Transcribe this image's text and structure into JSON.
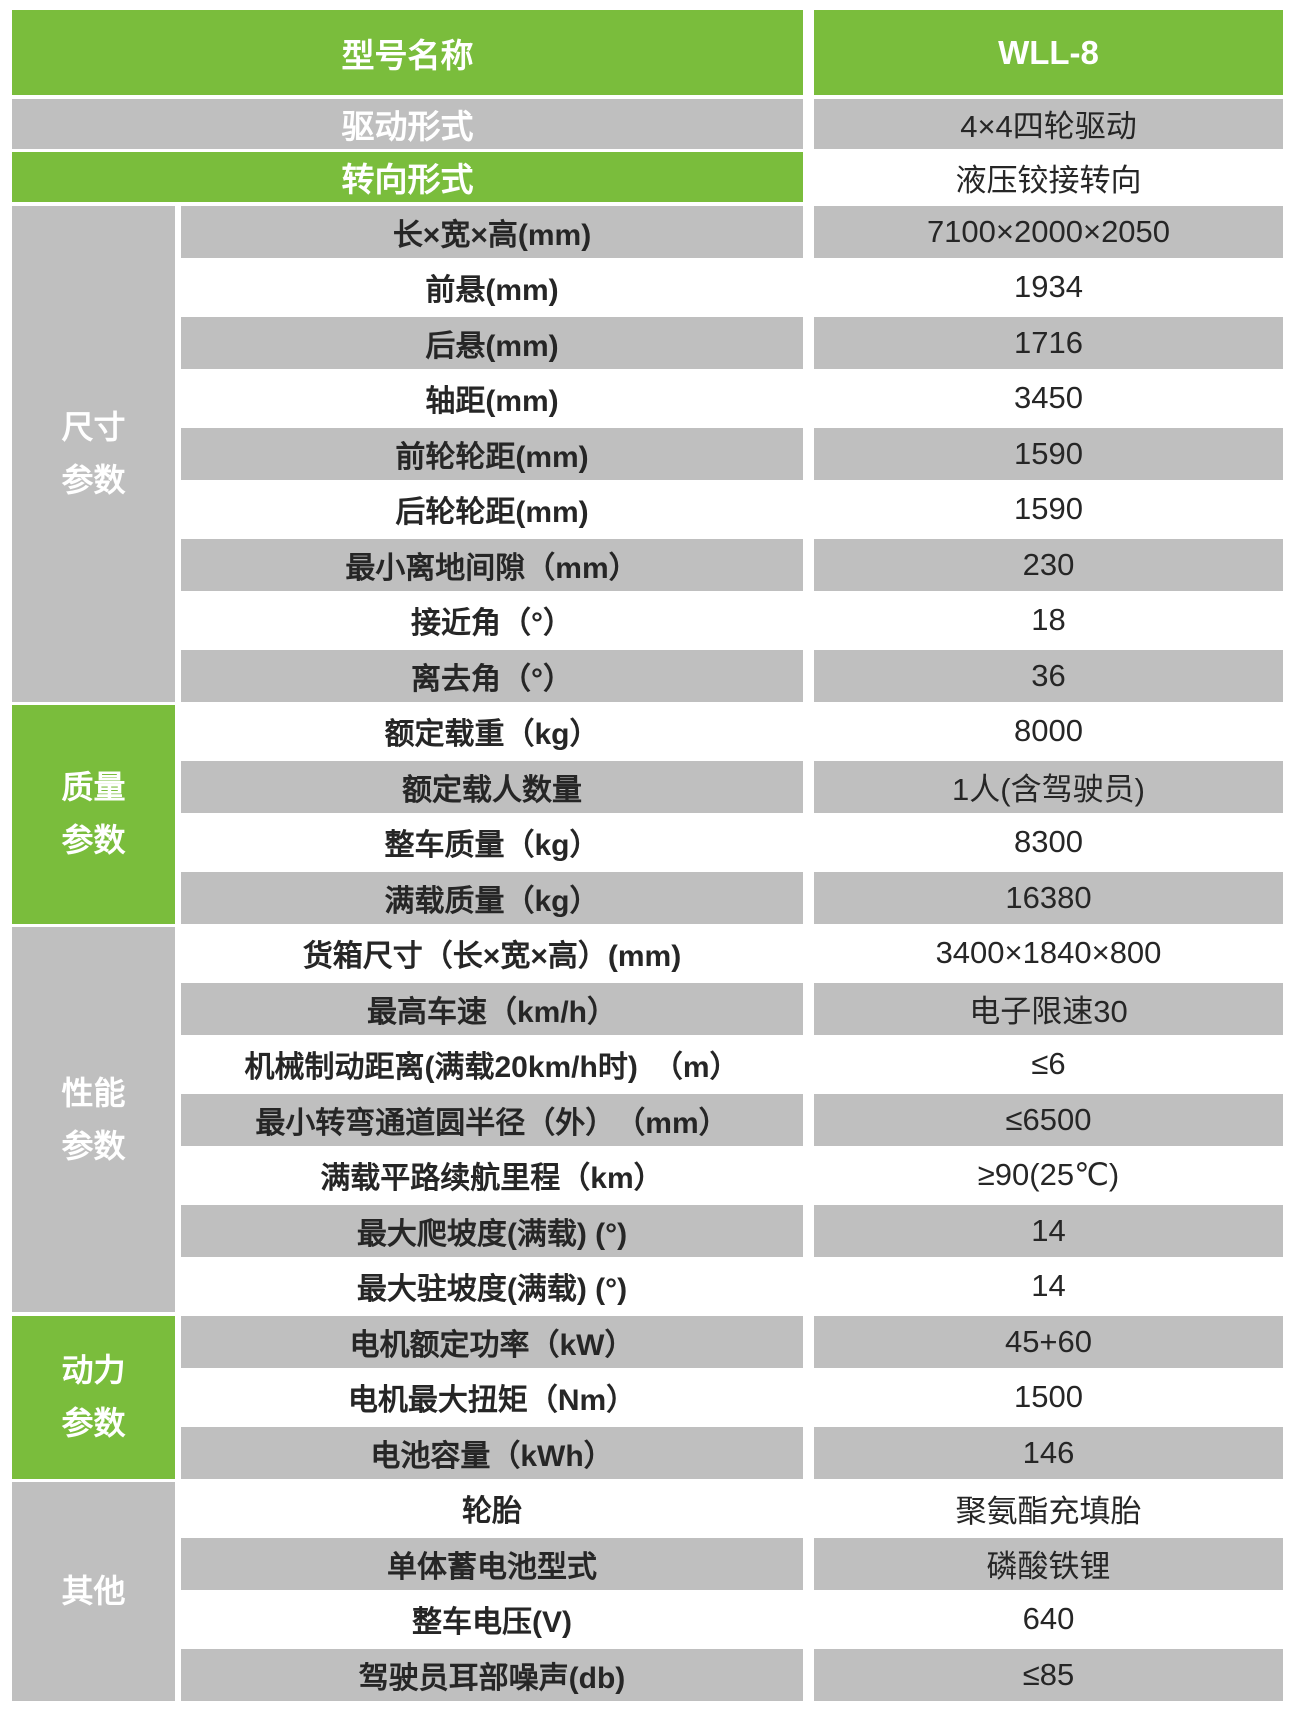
{
  "colors": {
    "green": "#7abd3c",
    "gray": "#bfbfbf",
    "text_dark": "#262626",
    "text_light": "#ffffff"
  },
  "header_rows": [
    {
      "label": "型号名称",
      "value": "WLL-8",
      "label_bg": "green",
      "value_bg": "green",
      "value_style": "light"
    },
    {
      "label": "驱动形式",
      "value": "4×4四轮驱动",
      "label_bg": "gray",
      "value_bg": "gray",
      "value_style": "dark"
    },
    {
      "label": "转向形式",
      "value": "液压铰接转向",
      "label_bg": "green",
      "value_bg": "white",
      "value_style": "dark"
    }
  ],
  "sections": [
    {
      "name": "尺寸参数",
      "side_bg": "gray",
      "rows": [
        {
          "label": "长×宽×高(mm)",
          "value": "7100×2000×2050"
        },
        {
          "label": "前悬(mm)",
          "value": "1934"
        },
        {
          "label": "后悬(mm)",
          "value": "1716"
        },
        {
          "label": "轴距(mm)",
          "value": "3450"
        },
        {
          "label": "前轮轮距(mm)",
          "value": "1590"
        },
        {
          "label": "后轮轮距(mm)",
          "value": "1590"
        },
        {
          "label": "最小离地间隙（mm）",
          "value": "230"
        },
        {
          "label": "接近角（°）",
          "value": "18"
        },
        {
          "label": "离去角（°）",
          "value": "36"
        }
      ]
    },
    {
      "name": "质量参数",
      "side_bg": "green",
      "rows": [
        {
          "label": "额定载重（kg）",
          "value": "8000"
        },
        {
          "label": "额定载人数量",
          "value": "1人(含驾驶员)"
        },
        {
          "label": "整车质量（kg）",
          "value": "8300"
        },
        {
          "label": "满载质量（kg）",
          "value": "16380"
        }
      ]
    },
    {
      "name": "性能参数",
      "side_bg": "gray",
      "rows": [
        {
          "label": "货箱尺寸（长×宽×高）(mm)",
          "value": "3400×1840×800"
        },
        {
          "label": "最高车速（km/h）",
          "value": "电子限速30"
        },
        {
          "label": "机械制动距离(满载20km/h时)　（m）",
          "value": "≤6"
        },
        {
          "label": "最小转弯通道圆半径（外）　（mm）",
          "value": "≤6500"
        },
        {
          "label": "满载平路续航里程（km）",
          "value": "≥90(25℃)"
        },
        {
          "label": "最大爬坡度(满载) (°)",
          "value": "14"
        },
        {
          "label": "最大驻坡度(满载) (°)",
          "value": "14"
        }
      ]
    },
    {
      "name": "动力参数",
      "side_bg": "green",
      "rows": [
        {
          "label": "电机额定功率（kW）",
          "value": "45+60"
        },
        {
          "label": "电机最大扭矩（Nm）",
          "value": "1500"
        },
        {
          "label": "电池容量（kWh）",
          "value": "146"
        }
      ]
    },
    {
      "name": "其他",
      "side_bg": "gray",
      "rows": [
        {
          "label": "轮胎",
          "value": "聚氨酯充填胎"
        },
        {
          "label": "单体蓄电池型式",
          "value": "磷酸铁锂"
        },
        {
          "label": "整车电压(V)",
          "value": "640"
        },
        {
          "label": "驾驶员耳部噪声(db)",
          "value": "≤85"
        }
      ]
    }
  ]
}
